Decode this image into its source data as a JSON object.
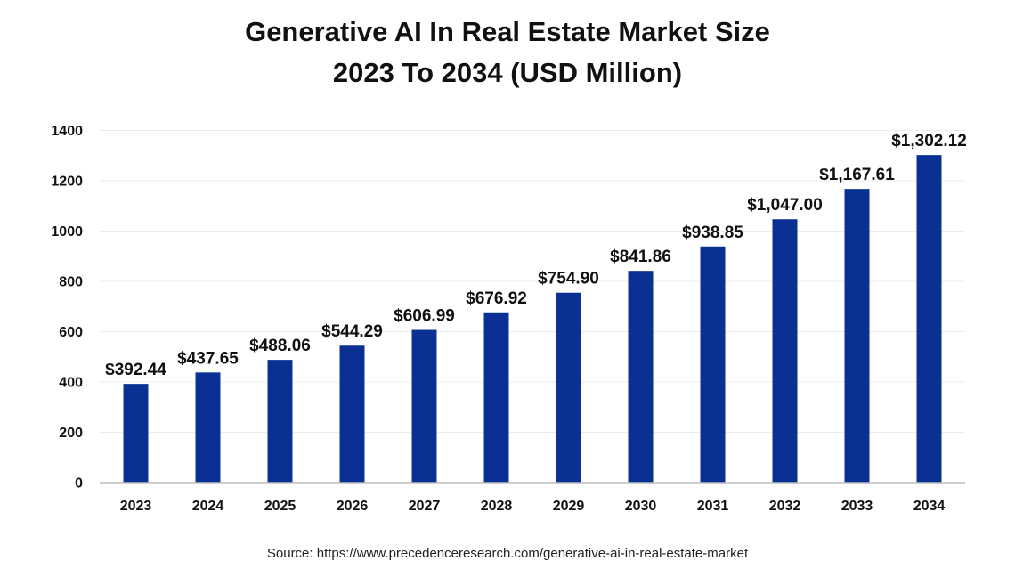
{
  "chart_data": {
    "type": "bar",
    "title": "Generative AI In Real Estate Market Size",
    "subtitle": "2023 To 2034 (USD Million)",
    "categories": [
      "2023",
      "2024",
      "2025",
      "2026",
      "2027",
      "2028",
      "2029",
      "2030",
      "2031",
      "2032",
      "2033",
      "2034"
    ],
    "values": [
      392.44,
      437.65,
      488.06,
      544.29,
      606.99,
      676.92,
      754.9,
      841.86,
      938.85,
      1047.0,
      1167.61,
      1302.12
    ],
    "data_labels": [
      "$392.44",
      "$437.65",
      "$488.06",
      "$544.29",
      "$606.99",
      "$676.92",
      "$754.90",
      "$841.86",
      "$938.85",
      "$1,047.00",
      "$1,167.61",
      "$1,302.12"
    ],
    "yticks": [
      "0",
      "200",
      "400",
      "600",
      "800",
      "1000",
      "1200",
      "1400"
    ],
    "ylim": [
      0,
      1400
    ],
    "xlabel": "",
    "ylabel": "",
    "grid": true,
    "bar_color": "#0a3094"
  },
  "source": "Source: https://www.precedenceresearch.com/generative-ai-in-real-estate-market"
}
